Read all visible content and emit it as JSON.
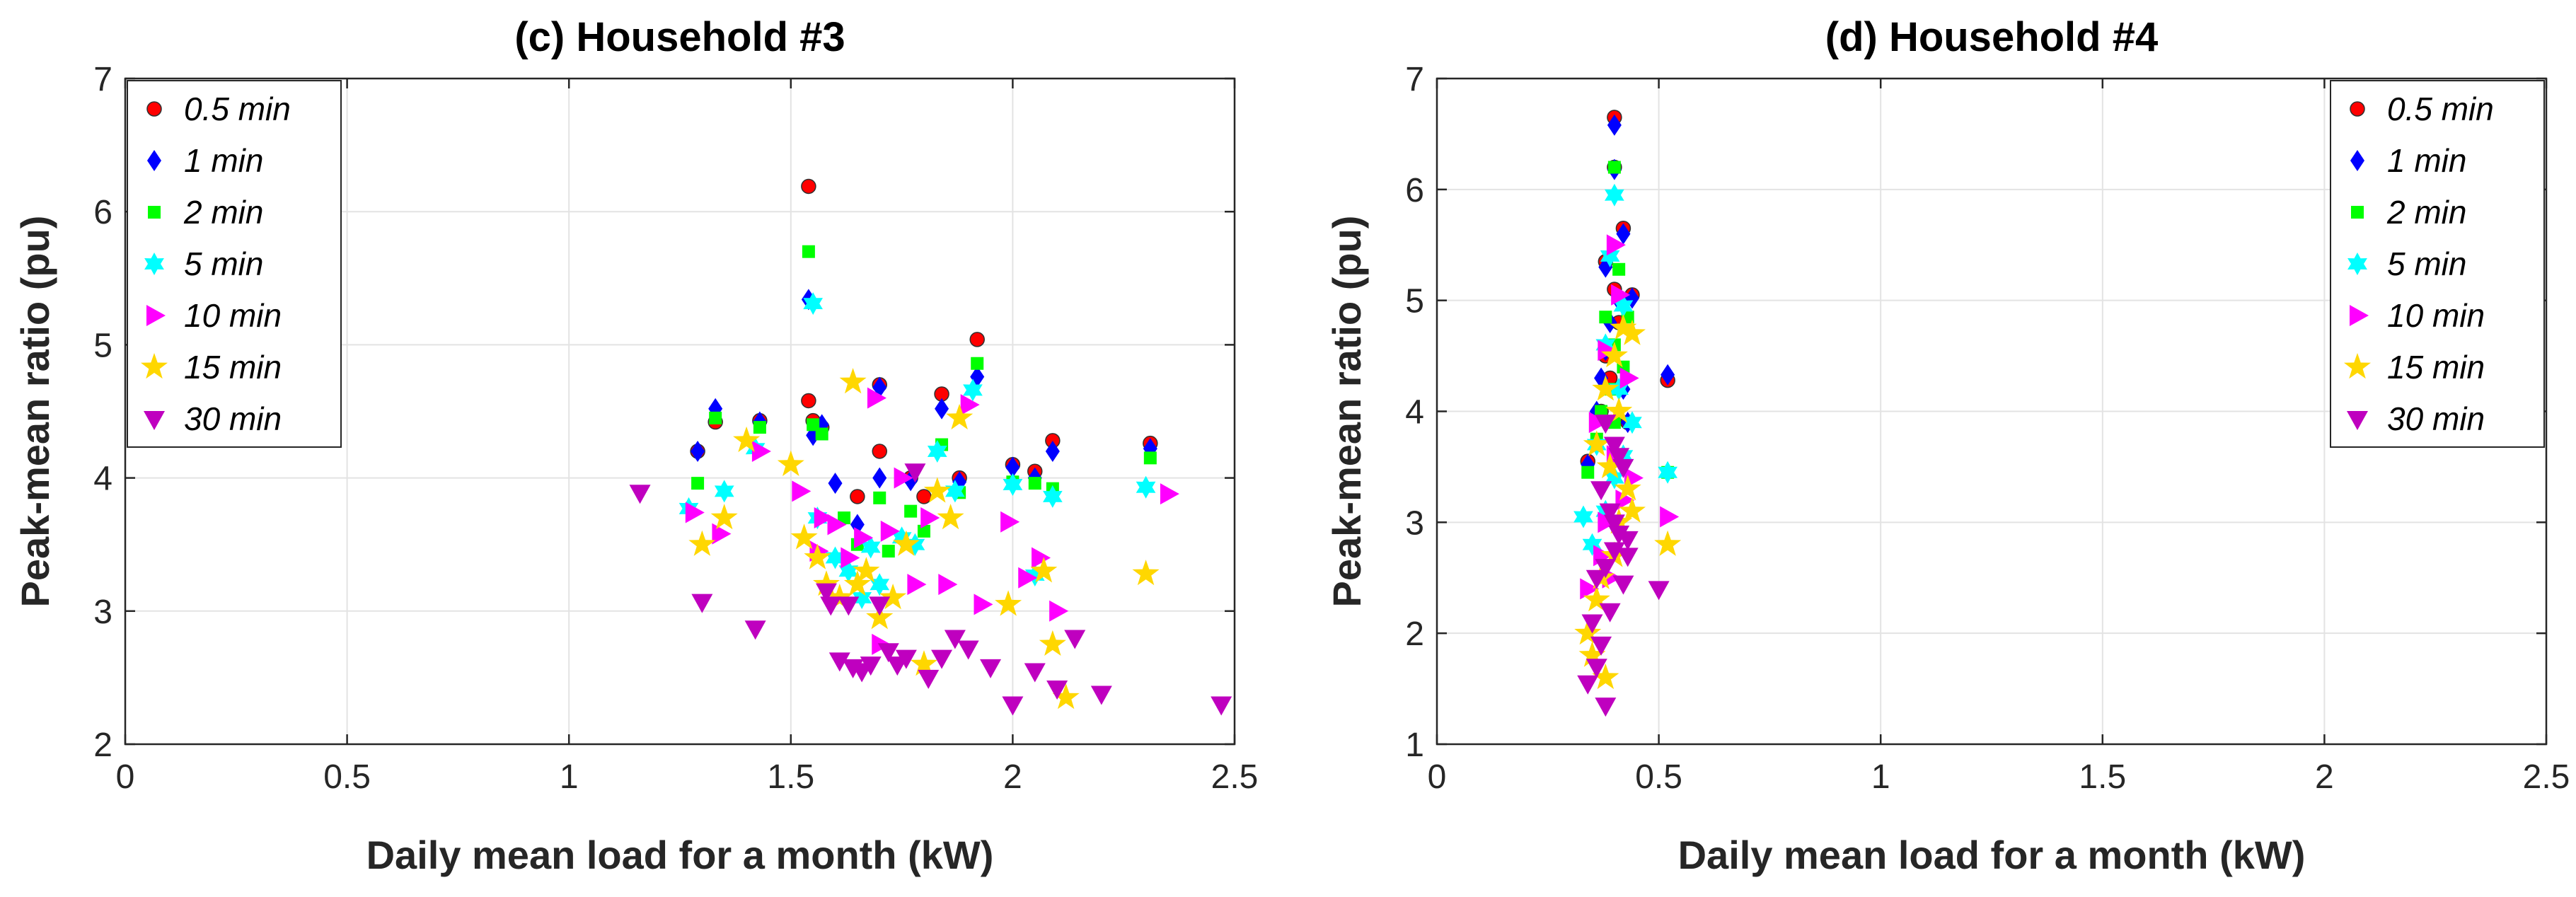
{
  "chart_data": [
    {
      "type": "scatter",
      "title": "(c) Household #3",
      "xlabel": "Daily mean load for a month (kW)",
      "ylabel": "Peak-mean ratio (pu)",
      "xlim": [
        0,
        2.5
      ],
      "ylim": [
        2,
        7
      ],
      "xticks": [
        0,
        0.5,
        1,
        1.5,
        2,
        2.5
      ],
      "xtick_labels": [
        "0",
        "0.5",
        "1",
        "1.5",
        "2",
        "2.5"
      ],
      "yticks": [
        2,
        3,
        4,
        5,
        6,
        7
      ],
      "ytick_labels": [
        "2",
        "3",
        "4",
        "5",
        "6",
        "7"
      ],
      "grid": true,
      "legend_position": "top-left",
      "series": [
        {
          "name": "0.5 min",
          "marker": "circle",
          "color": "#ff0000",
          "x": [
            1.29,
            1.33,
            1.43,
            1.54,
            1.54,
            1.55,
            1.57,
            1.65,
            1.7,
            1.7,
            1.77,
            1.8,
            1.84,
            1.88,
            1.92,
            2.0,
            2.05,
            2.09,
            2.31
          ],
          "y": [
            4.2,
            4.42,
            4.43,
            6.19,
            4.58,
            4.43,
            4.38,
            3.86,
            4.2,
            4.7,
            4.0,
            3.86,
            4.63,
            4.0,
            5.04,
            4.1,
            4.05,
            4.28,
            4.26
          ]
        },
        {
          "name": "1 min",
          "marker": "diamond",
          "color": "#0000ff",
          "x": [
            1.29,
            1.33,
            1.43,
            1.54,
            1.55,
            1.57,
            1.65,
            1.7,
            1.7,
            1.77,
            1.84,
            1.88,
            1.92,
            2.0,
            2.05,
            2.09,
            2.31,
            1.6
          ],
          "y": [
            4.2,
            4.52,
            4.42,
            5.34,
            4.32,
            4.4,
            3.65,
            4.0,
            4.68,
            3.98,
            4.52,
            3.97,
            4.76,
            4.08,
            4.0,
            4.2,
            4.22,
            3.96
          ]
        },
        {
          "name": "2 min",
          "marker": "square",
          "color": "#00ff00",
          "x": [
            1.29,
            1.33,
            1.43,
            1.54,
            1.55,
            1.57,
            1.65,
            1.7,
            1.77,
            1.8,
            1.84,
            1.88,
            1.92,
            2.0,
            2.05,
            2.09,
            2.31,
            1.62,
            1.72
          ],
          "y": [
            3.96,
            4.45,
            4.38,
            5.7,
            4.4,
            4.33,
            3.5,
            3.85,
            3.75,
            3.6,
            4.25,
            3.89,
            4.86,
            3.97,
            3.96,
            3.92,
            4.15,
            3.7,
            3.45
          ]
        },
        {
          "name": "5 min",
          "marker": "hexagram",
          "color": "#00ffff",
          "x": [
            1.27,
            1.35,
            1.42,
            1.55,
            1.56,
            1.6,
            1.63,
            1.68,
            1.7,
            1.75,
            1.78,
            1.83,
            1.87,
            1.91,
            2.0,
            2.05,
            2.09,
            2.3,
            1.66
          ],
          "y": [
            3.77,
            3.9,
            4.22,
            5.31,
            3.7,
            3.4,
            3.3,
            3.48,
            3.2,
            3.55,
            3.5,
            4.2,
            3.9,
            4.66,
            3.95,
            3.27,
            3.86,
            3.93,
            3.1
          ]
        },
        {
          "name": "10 min",
          "marker": "triangle-right",
          "color": "#ff00ff",
          "x": [
            1.28,
            1.34,
            1.43,
            1.52,
            1.57,
            1.6,
            1.63,
            1.66,
            1.69,
            1.72,
            1.75,
            1.78,
            1.81,
            1.85,
            1.9,
            1.93,
            1.99,
            2.03,
            2.06,
            2.1,
            2.35,
            1.56,
            1.7
          ],
          "y": [
            3.74,
            3.58,
            4.2,
            3.9,
            3.7,
            3.65,
            3.4,
            3.55,
            4.6,
            3.6,
            4.0,
            3.2,
            3.7,
            3.2,
            4.55,
            3.05,
            3.67,
            3.25,
            3.4,
            3.0,
            3.88,
            3.45,
            2.75
          ]
        },
        {
          "name": "15 min",
          "marker": "pentagram",
          "color": "#ffd700",
          "x": [
            1.3,
            1.35,
            1.4,
            1.5,
            1.53,
            1.56,
            1.58,
            1.61,
            1.64,
            1.67,
            1.7,
            1.73,
            1.76,
            1.8,
            1.83,
            1.86,
            1.88,
            1.99,
            2.07,
            2.09,
            2.12,
            2.3,
            1.65
          ],
          "y": [
            3.5,
            3.7,
            4.28,
            4.1,
            3.55,
            3.4,
            3.2,
            3.1,
            4.72,
            3.3,
            2.95,
            3.1,
            3.5,
            2.6,
            3.9,
            3.7,
            4.45,
            3.05,
            3.3,
            2.75,
            2.35,
            3.28,
            3.2
          ]
        },
        {
          "name": "30 min",
          "marker": "triangle-down",
          "color": "#bf00bf",
          "x": [
            1.16,
            1.3,
            1.42,
            1.58,
            1.61,
            1.63,
            1.66,
            1.68,
            1.7,
            1.72,
            1.74,
            1.76,
            1.78,
            1.81,
            1.84,
            1.87,
            1.9,
            1.95,
            2.0,
            2.05,
            2.1,
            2.14,
            2.2,
            2.47,
            1.59,
            1.64
          ],
          "y": [
            3.89,
            3.07,
            2.87,
            3.15,
            2.63,
            3.05,
            2.55,
            2.6,
            3.05,
            2.7,
            2.6,
            2.65,
            4.05,
            2.5,
            2.65,
            2.8,
            2.72,
            2.58,
            2.3,
            2.55,
            2.42,
            2.8,
            2.38,
            2.3,
            3.05,
            2.58
          ]
        }
      ]
    },
    {
      "type": "scatter",
      "title": "(d) Household #4",
      "xlabel": "Daily mean load for a month (kW)",
      "ylabel": "Peak-mean ratio (pu)",
      "xlim": [
        0,
        2.5
      ],
      "ylim": [
        1,
        7
      ],
      "xticks": [
        0,
        0.5,
        1,
        1.5,
        2,
        2.5
      ],
      "xtick_labels": [
        "0",
        "0.5",
        "1",
        "1.5",
        "2",
        "2.5"
      ],
      "yticks": [
        1,
        2,
        3,
        4,
        5,
        6,
        7
      ],
      "ytick_labels": [
        "1",
        "2",
        "3",
        "4",
        "5",
        "6",
        "7"
      ],
      "grid": true,
      "legend_position": "top-right",
      "series": [
        {
          "name": "0.5 min",
          "marker": "circle",
          "color": "#ff0000",
          "x": [
            0.4,
            0.4,
            0.42,
            0.38,
            0.4,
            0.44,
            0.52,
            0.38,
            0.41,
            0.37,
            0.39,
            0.43,
            0.34,
            0.36
          ],
          "y": [
            6.65,
            6.2,
            5.65,
            5.35,
            5.1,
            5.05,
            4.28,
            4.5,
            4.8,
            4.0,
            4.3,
            3.9,
            3.55,
            3.95
          ]
        },
        {
          "name": "1 min",
          "marker": "diamond",
          "color": "#0000ff",
          "x": [
            0.4,
            0.4,
            0.42,
            0.38,
            0.41,
            0.44,
            0.52,
            0.38,
            0.39,
            0.36,
            0.43,
            0.34,
            0.37,
            0.42
          ],
          "y": [
            6.58,
            6.18,
            5.6,
            5.3,
            5.0,
            5.02,
            4.33,
            4.55,
            4.8,
            4.0,
            3.9,
            3.52,
            4.3,
            4.2
          ]
        },
        {
          "name": "2 min",
          "marker": "square",
          "color": "#00ff00",
          "x": [
            0.4,
            0.41,
            0.38,
            0.4,
            0.43,
            0.39,
            0.37,
            0.42,
            0.34,
            0.36,
            0.52,
            0.4
          ],
          "y": [
            6.2,
            5.28,
            4.85,
            4.6,
            4.85,
            4.2,
            4.0,
            4.4,
            3.45,
            3.75,
            3.45,
            3.9
          ]
        },
        {
          "name": "5 min",
          "marker": "hexagram",
          "color": "#00ffff",
          "x": [
            0.4,
            0.39,
            0.42,
            0.38,
            0.41,
            0.44,
            0.36,
            0.4,
            0.33,
            0.35,
            0.52,
            0.38,
            0.42
          ],
          "y": [
            5.95,
            5.4,
            4.95,
            4.6,
            4.2,
            3.9,
            3.7,
            3.4,
            3.05,
            2.8,
            3.45,
            3.1,
            3.6
          ]
        },
        {
          "name": "10 min",
          "marker": "triangle-right",
          "color": "#ff00ff",
          "x": [
            0.4,
            0.41,
            0.38,
            0.43,
            0.36,
            0.4,
            0.34,
            0.42,
            0.52,
            0.38,
            0.37,
            0.44,
            0.39
          ],
          "y": [
            5.5,
            5.05,
            4.55,
            4.3,
            3.9,
            3.6,
            2.4,
            3.2,
            3.05,
            3.0,
            2.7,
            3.4,
            2.5
          ]
        },
        {
          "name": "15 min",
          "marker": "pentagram",
          "color": "#ffd700",
          "x": [
            0.42,
            0.4,
            0.44,
            0.38,
            0.41,
            0.36,
            0.39,
            0.43,
            0.34,
            0.35,
            0.38,
            0.52,
            0.37,
            0.41,
            0.44,
            0.36,
            0.4
          ],
          "y": [
            4.75,
            4.5,
            4.7,
            4.2,
            4.0,
            3.7,
            3.5,
            3.3,
            2.0,
            1.8,
            1.6,
            2.8,
            2.5,
            3.0,
            3.1,
            2.3,
            2.7
          ]
        },
        {
          "name": "30 min",
          "marker": "triangle-down",
          "color": "#bf00bf",
          "x": [
            0.38,
            0.4,
            0.42,
            0.37,
            0.39,
            0.41,
            0.43,
            0.36,
            0.38,
            0.4,
            0.42,
            0.35,
            0.37,
            0.5,
            0.39,
            0.41,
            0.36,
            0.38,
            0.34,
            0.4,
            0.43
          ],
          "y": [
            3.9,
            3.7,
            3.5,
            3.3,
            3.1,
            2.9,
            2.7,
            2.5,
            2.6,
            2.75,
            2.45,
            2.1,
            1.9,
            2.4,
            2.2,
            3.6,
            1.7,
            1.35,
            1.55,
            3.0,
            2.85
          ]
        }
      ]
    }
  ]
}
